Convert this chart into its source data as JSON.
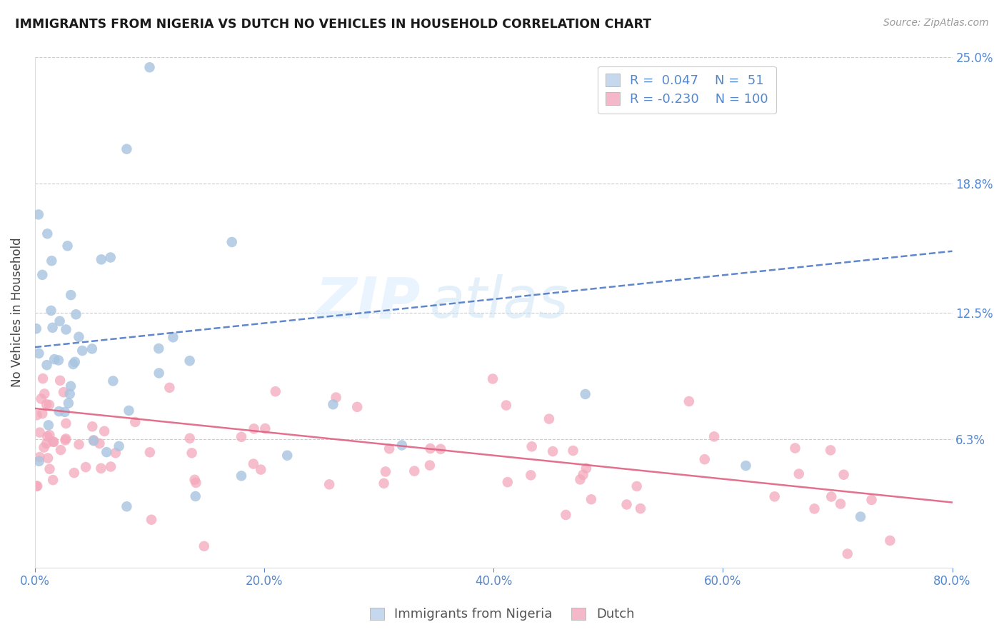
{
  "title": "IMMIGRANTS FROM NIGERIA VS DUTCH NO VEHICLES IN HOUSEHOLD CORRELATION CHART",
  "source_text": "Source: ZipAtlas.com",
  "ylabel": "No Vehicles in Household",
  "watermark_line1": "ZIP",
  "watermark_line2": "atlas",
  "series": [
    {
      "name": "Immigrants from Nigeria",
      "R": 0.047,
      "N": 51,
      "dot_color": "#a8c4e0",
      "line_color": "#4472c4",
      "line_style": "--"
    },
    {
      "name": "Dutch",
      "R": -0.23,
      "N": 100,
      "dot_color": "#f4a8bb",
      "line_color": "#e06080",
      "line_style": "-"
    }
  ],
  "xmin": 0.0,
  "xmax": 80.0,
  "ymin": 0.0,
  "ymax": 25.0,
  "yticks": [
    0.0,
    6.3,
    12.5,
    18.8,
    25.0
  ],
  "ytick_labels": [
    "",
    "6.3%",
    "12.5%",
    "18.8%",
    "25.0%"
  ],
  "xticks": [
    0.0,
    20.0,
    40.0,
    60.0,
    80.0
  ],
  "xtick_labels": [
    "0.0%",
    "20.0%",
    "40.0%",
    "60.0%",
    "80.0%"
  ],
  "background_color": "#ffffff",
  "grid_color": "#cccccc",
  "tick_label_color": "#5588cc",
  "legend_box_colors": [
    "#c5d8ee",
    "#f4b8c8"
  ],
  "nigeria_trend_x0": 0,
  "nigeria_trend_y0": 10.8,
  "nigeria_trend_x1": 80,
  "nigeria_trend_y1": 15.5,
  "dutch_trend_x0": 0,
  "dutch_trend_y0": 7.8,
  "dutch_trend_x1": 80,
  "dutch_trend_y1": 3.2
}
